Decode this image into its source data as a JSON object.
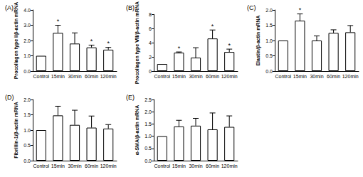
{
  "chart_data": [
    {
      "type": "bar",
      "title": "(A)",
      "y_label": "Procollagen type I/β-actin mRNA",
      "categories": [
        "Control",
        "15min",
        "30min",
        "60min",
        "120min"
      ],
      "values": [
        1.0,
        2.5,
        1.8,
        1.55,
        1.4
      ],
      "errors": [
        0,
        0.5,
        0.7,
        0.15,
        0.15
      ],
      "annotations": [
        {
          "category": "15min",
          "text": "*"
        },
        {
          "category": "60min",
          "text": "*"
        },
        {
          "category": "120min",
          "text": "*"
        }
      ],
      "color": "#ffffff",
      "grid": false,
      "ylim": [
        0,
        4
      ],
      "yticks": [
        {
          "value": 0,
          "label": "0.0"
        },
        {
          "value": 1,
          "label": "1.0"
        },
        {
          "value": 2,
          "label": "2.0"
        },
        {
          "value": 3,
          "label": "3.0"
        },
        {
          "value": 4,
          "label": "4.0"
        }
      ]
    },
    {
      "type": "bar",
      "title": "(B)",
      "y_label": "Procollagen type Ⅶ/β-actin mRNA",
      "categories": [
        "Control",
        "15min",
        "30min",
        "60min",
        "120min"
      ],
      "values": [
        1.0,
        2.6,
        1.9,
        4.6,
        2.7
      ],
      "errors": [
        0,
        0.1,
        1.4,
        1.2,
        0.4
      ],
      "annotations": [
        {
          "category": "15min",
          "text": "*"
        },
        {
          "category": "60min",
          "text": "*"
        },
        {
          "category": "120min",
          "text": "*"
        }
      ],
      "color": "#ffffff",
      "grid": false,
      "ylim": [
        0,
        8
      ],
      "yticks": [
        0,
        2,
        4,
        6,
        8
      ]
    },
    {
      "type": "bar",
      "title": "(C)",
      "y_label": "Elastin/β-actin mRNA",
      "categories": [
        "Control",
        "15min",
        "30min",
        "60min",
        "120min"
      ],
      "values": [
        1.0,
        1.65,
        1.0,
        1.25,
        1.27
      ],
      "errors": [
        0,
        0.22,
        0.15,
        0.1,
        0.22
      ],
      "annotations": [
        {
          "category": "15min",
          "text": "*"
        }
      ],
      "color": "#ffffff",
      "grid": false,
      "ylim": [
        0,
        2
      ],
      "yticks": [
        {
          "value": 0,
          "label": "0.0"
        },
        {
          "value": 0.5,
          "label": "0.5"
        },
        {
          "value": 1,
          "label": "1.0"
        },
        {
          "value": 1.5,
          "label": "1.5"
        },
        {
          "value": 2,
          "label": "2.0"
        }
      ]
    },
    {
      "type": "bar",
      "title": "(D)",
      "y_label": "Fibrillin-1/β-actin mRNA",
      "categories": [
        "Control",
        "15min",
        "30min",
        "60min",
        "120min"
      ],
      "values": [
        1.0,
        1.48,
        1.17,
        1.08,
        1.05
      ],
      "errors": [
        0,
        0.3,
        0.48,
        0.38,
        0.13
      ],
      "color": "#ffffff",
      "grid": false,
      "ylim": [
        0,
        2
      ],
      "yticks": [
        {
          "value": 0,
          "label": "0.0"
        },
        {
          "value": 0.5,
          "label": "0.5"
        },
        {
          "value": 1,
          "label": "1.0"
        },
        {
          "value": 1.5,
          "label": "1.5"
        },
        {
          "value": 2,
          "label": "2.0"
        }
      ]
    },
    {
      "type": "bar",
      "title": "(E)",
      "y_label": "α-SMA/β-actin mRNA",
      "categories": [
        "Control",
        "15min",
        "30min",
        "60min",
        "120min"
      ],
      "values": [
        1.0,
        1.4,
        1.43,
        1.28,
        1.38
      ],
      "errors": [
        0,
        0.25,
        0.3,
        0.67,
        0.45
      ],
      "color": "#ffffff",
      "grid": false,
      "ylim": [
        0,
        2.5
      ],
      "yticks": [
        {
          "value": 0,
          "label": "0.0"
        },
        {
          "value": 0.5,
          "label": "0.5"
        },
        {
          "value": 1,
          "label": "1.0"
        },
        {
          "value": 1.5,
          "label": "1.5"
        },
        {
          "value": 2,
          "label": "2.0"
        },
        {
          "value": 2.5,
          "label": "2.5"
        }
      ]
    }
  ]
}
